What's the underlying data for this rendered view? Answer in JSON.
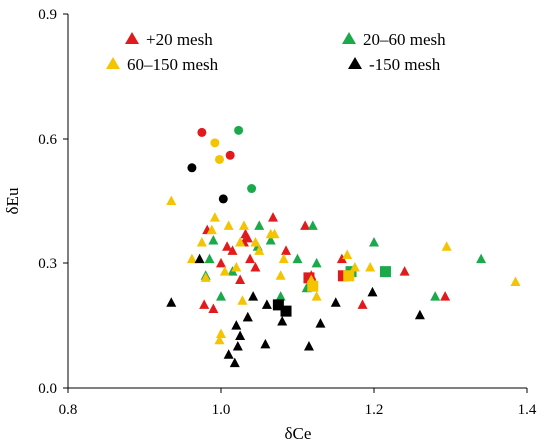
{
  "chart_data": {
    "type": "scatter",
    "xlabel": "δCe",
    "ylabel": "δEu",
    "xlim": [
      0.8,
      1.4
    ],
    "ylim": [
      0.0,
      0.9
    ],
    "x_ticks": [
      "0.8",
      "1.0",
      "1.2",
      "1.4"
    ],
    "y_ticks": [
      "0.0",
      "0.3",
      "0.6",
      "0.9"
    ],
    "grid": false,
    "legend": {
      "placement": "top",
      "columns": 2
    },
    "series": [
      {
        "name": "+20 mesh",
        "color": "#e31a1c",
        "triangles": [
          [
            0.978,
            0.2
          ],
          [
            0.982,
            0.38
          ],
          [
            0.99,
            0.19
          ],
          [
            1.0,
            0.3
          ],
          [
            1.008,
            0.34
          ],
          [
            1.015,
            0.33
          ],
          [
            1.025,
            0.26
          ],
          [
            1.03,
            0.35
          ],
          [
            1.032,
            0.37
          ],
          [
            1.035,
            0.36
          ],
          [
            1.035,
            0.17
          ],
          [
            1.038,
            0.31
          ],
          [
            1.045,
            0.29
          ],
          [
            1.068,
            0.41
          ],
          [
            1.085,
            0.33
          ],
          [
            1.11,
            0.39
          ],
          [
            1.118,
            0.27
          ],
          [
            1.12,
            0.26
          ],
          [
            1.158,
            0.31
          ],
          [
            1.185,
            0.2
          ],
          [
            1.24,
            0.28
          ],
          [
            1.293,
            0.22
          ]
        ],
        "circles": [
          [
            0.975,
            0.615
          ],
          [
            1.012,
            0.56
          ]
        ],
        "squares": [
          [
            1.115,
            0.265
          ],
          [
            1.16,
            0.27
          ]
        ]
      },
      {
        "name": "20–60 mesh",
        "color": "#1aaa4b",
        "triangles": [
          [
            0.98,
            0.27
          ],
          [
            0.985,
            0.31
          ],
          [
            0.99,
            0.355
          ],
          [
            1.0,
            0.22
          ],
          [
            1.015,
            0.28
          ],
          [
            1.048,
            0.34
          ],
          [
            1.05,
            0.39
          ],
          [
            1.065,
            0.355
          ],
          [
            1.078,
            0.22
          ],
          [
            1.1,
            0.31
          ],
          [
            1.112,
            0.24
          ],
          [
            1.12,
            0.39
          ],
          [
            1.125,
            0.3
          ],
          [
            1.2,
            0.35
          ],
          [
            1.28,
            0.22
          ],
          [
            1.34,
            0.31
          ]
        ],
        "circles": [
          [
            1.023,
            0.62
          ],
          [
            1.04,
            0.48
          ]
        ],
        "squares": [
          [
            1.17,
            0.28
          ],
          [
            1.215,
            0.28
          ]
        ]
      },
      {
        "name": "60–150 mesh",
        "color": "#f5c400",
        "triangles": [
          [
            0.935,
            0.45
          ],
          [
            0.962,
            0.31
          ],
          [
            0.975,
            0.35
          ],
          [
            0.98,
            0.265
          ],
          [
            0.988,
            0.38
          ],
          [
            0.992,
            0.41
          ],
          [
            0.998,
            0.115
          ],
          [
            1.0,
            0.13
          ],
          [
            1.005,
            0.28
          ],
          [
            1.01,
            0.39
          ],
          [
            1.02,
            0.29
          ],
          [
            1.025,
            0.35
          ],
          [
            1.028,
            0.21
          ],
          [
            1.03,
            0.39
          ],
          [
            1.045,
            0.35
          ],
          [
            1.05,
            0.33
          ],
          [
            1.065,
            0.37
          ],
          [
            1.07,
            0.37
          ],
          [
            1.078,
            0.27
          ],
          [
            1.082,
            0.31
          ],
          [
            1.118,
            0.26
          ],
          [
            1.125,
            0.22
          ],
          [
            1.165,
            0.32
          ],
          [
            1.175,
            0.29
          ],
          [
            1.195,
            0.29
          ],
          [
            1.295,
            0.34
          ],
          [
            1.385,
            0.255
          ]
        ],
        "circles": [
          [
            0.992,
            0.59
          ],
          [
            0.998,
            0.55
          ]
        ],
        "squares": [
          [
            1.12,
            0.245
          ],
          [
            1.167,
            0.27
          ]
        ]
      },
      {
        "name": "-150 mesh",
        "color": "#000000",
        "triangles": [
          [
            0.935,
            0.205
          ],
          [
            0.972,
            0.31
          ],
          [
            1.01,
            0.08
          ],
          [
            1.018,
            0.06
          ],
          [
            1.02,
            0.15
          ],
          [
            1.022,
            0.1
          ],
          [
            1.025,
            0.125
          ],
          [
            1.035,
            0.17
          ],
          [
            1.042,
            0.22
          ],
          [
            1.058,
            0.105
          ],
          [
            1.06,
            0.2
          ],
          [
            1.08,
            0.16
          ],
          [
            1.115,
            0.1
          ],
          [
            1.13,
            0.155
          ],
          [
            1.15,
            0.205
          ],
          [
            1.198,
            0.23
          ],
          [
            1.26,
            0.175
          ]
        ],
        "circles": [
          [
            0.962,
            0.53
          ],
          [
            1.003,
            0.455
          ]
        ],
        "squares": [
          [
            1.075,
            0.2
          ],
          [
            1.085,
            0.185
          ]
        ]
      }
    ]
  }
}
